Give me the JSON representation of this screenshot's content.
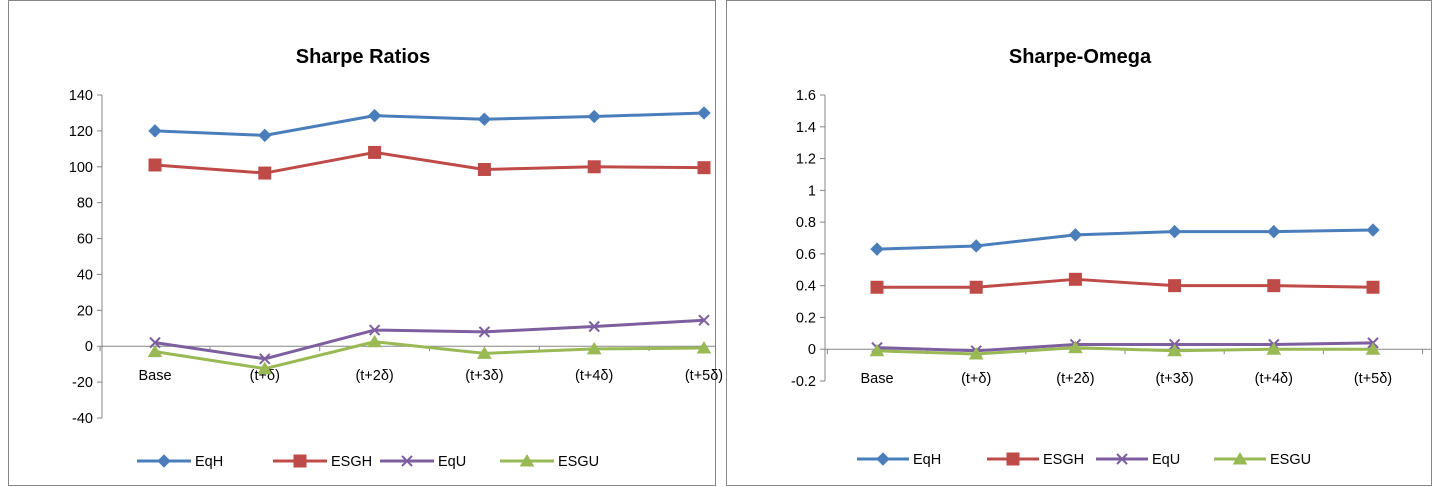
{
  "chart_data": [
    {
      "type": "line",
      "title": "Sharpe Ratios",
      "categories": [
        "Base",
        "(t+δ)",
        "(t+2δ)",
        "(t+3δ)",
        "(t+4δ)",
        "(t+5δ)"
      ],
      "ylim": [
        -40,
        140
      ],
      "yticks": [
        "140",
        "120",
        "100",
        "80",
        "60",
        "40",
        "20",
        "0",
        "-20",
        "-40"
      ],
      "grid": false,
      "legend": "bottom",
      "series": [
        {
          "name": "EqH",
          "marker": "diamond",
          "color": "#4a7ebb",
          "values": [
            120,
            117.5,
            128.5,
            126.5,
            128,
            130
          ]
        },
        {
          "name": "ESGH",
          "marker": "square",
          "color": "#be4b48",
          "values": [
            101,
            96.5,
            108,
            98.5,
            100,
            99.5
          ]
        },
        {
          "name": "EqU",
          "marker": "x",
          "color": "#7d5fa0",
          "values": [
            2,
            -7,
            9,
            8,
            11,
            14.5
          ]
        },
        {
          "name": "ESGU",
          "marker": "triangle",
          "color": "#98b954",
          "values": [
            -3,
            -12.5,
            2.5,
            -4,
            -1.5,
            -1
          ]
        }
      ]
    },
    {
      "type": "line",
      "title": "Sharpe-Omega",
      "categories": [
        "Base",
        "(t+δ)",
        "(t+2δ)",
        "(t+3δ)",
        "(t+4δ)",
        "(t+5δ)"
      ],
      "ylim": [
        -0.2,
        1.6
      ],
      "yticks": [
        "1.6",
        "1.4",
        "1.2",
        "1",
        "0.8",
        "0.6",
        "0.4",
        "0.2",
        "0",
        "-0.2"
      ],
      "grid": false,
      "legend": "bottom",
      "series": [
        {
          "name": "EqH",
          "marker": "diamond",
          "color": "#4a7ebb",
          "values": [
            0.63,
            0.65,
            0.72,
            0.74,
            0.74,
            0.75
          ]
        },
        {
          "name": "ESGH",
          "marker": "square",
          "color": "#be4b48",
          "values": [
            0.39,
            0.39,
            0.44,
            0.4,
            0.4,
            0.39
          ]
        },
        {
          "name": "EqU",
          "marker": "x",
          "color": "#7d5fa0",
          "values": [
            0.01,
            -0.01,
            0.03,
            0.03,
            0.03,
            0.04
          ]
        },
        {
          "name": "ESGU",
          "marker": "triangle",
          "color": "#98b954",
          "values": [
            -0.01,
            -0.03,
            0.01,
            -0.01,
            0,
            0
          ]
        }
      ]
    }
  ]
}
